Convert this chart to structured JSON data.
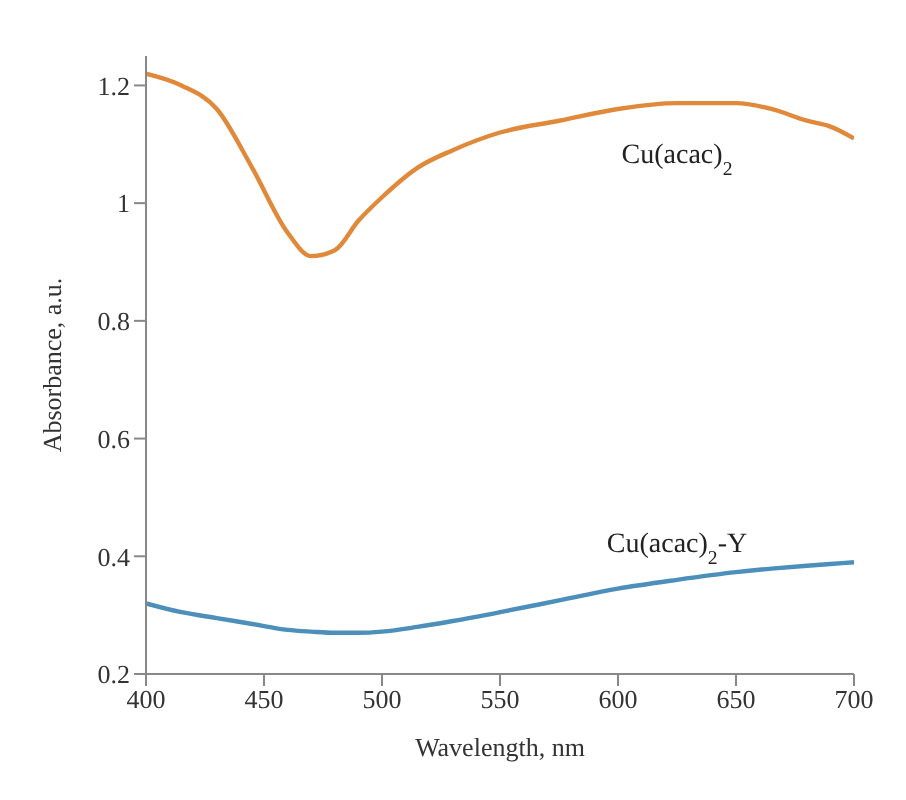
{
  "chart_data": {
    "type": "line",
    "xlabel": "Wavelength, nm",
    "ylabel": "Absorbance, a.u.",
    "x": [
      400,
      415,
      430,
      445,
      460,
      470,
      480,
      490,
      500,
      515,
      530,
      550,
      575,
      600,
      625,
      650,
      665,
      680,
      690,
      700
    ],
    "series": [
      {
        "name": "Cu(acac)$_{2}$",
        "color": "#e0893a",
        "values": [
          1.22,
          1.2,
          1.16,
          1.06,
          0.95,
          0.91,
          0.92,
          0.97,
          1.01,
          1.06,
          1.09,
          1.12,
          1.14,
          1.16,
          1.17,
          1.17,
          1.16,
          1.14,
          1.13,
          1.11
        ]
      },
      {
        "name": "Cu(acac)$_{2}$-Y",
        "color": "#4b8fba",
        "values": [
          0.32,
          0.305,
          0.295,
          0.285,
          0.275,
          0.272,
          0.27,
          0.27,
          0.272,
          0.28,
          0.29,
          0.305,
          0.325,
          0.345,
          0.36,
          0.373,
          0.379,
          0.384,
          0.387,
          0.39
        ]
      }
    ],
    "xlim": [
      400,
      700
    ],
    "xticks": [
      400,
      450,
      500,
      550,
      600,
      650,
      700
    ],
    "ylim": [
      0.2,
      1.25
    ],
    "yticks": [
      0.2,
      0.4,
      0.6,
      0.8,
      1,
      1.2
    ],
    "grid": false,
    "legend": false,
    "marker": "none",
    "line_style": "solid"
  }
}
